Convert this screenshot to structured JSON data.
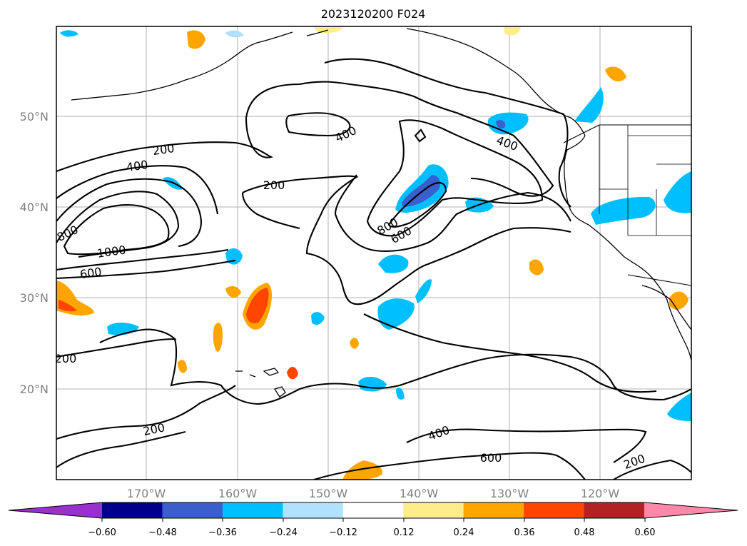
{
  "title": "2023120200 F024",
  "map": {
    "lat_labels": [
      "50°N",
      "40°N",
      "30°N",
      "20°N"
    ],
    "lon_labels": [
      "170°W",
      "160°W",
      "150°W",
      "140°W",
      "130°W",
      "120°W"
    ],
    "contour_labels": [
      {
        "text": "200"
      },
      {
        "text": "400"
      },
      {
        "text": "200"
      },
      {
        "text": "400"
      },
      {
        "text": "400"
      },
      {
        "text": "800"
      },
      {
        "text": "1000"
      },
      {
        "text": "600"
      },
      {
        "text": "800"
      },
      {
        "text": "600"
      },
      {
        "text": "200"
      },
      {
        "text": "200"
      },
      {
        "text": "400"
      },
      {
        "text": "600"
      },
      {
        "text": "200"
      }
    ],
    "gridlines": true
  },
  "colorbar": {
    "tick_labels": [
      "−0.60",
      "−0.48",
      "−0.36",
      "−0.24",
      "−0.12",
      "0.12",
      "0.24",
      "0.36",
      "0.48",
      "0.60"
    ],
    "colors": [
      "#9b30d0",
      "#00008b",
      "#3a5fcd",
      "#00bfff",
      "#b0e2ff",
      "#ffffff",
      "#ffec8b",
      "#ffa500",
      "#ff4500",
      "#b22222",
      "#ff88aa"
    ],
    "extend": "both"
  }
}
